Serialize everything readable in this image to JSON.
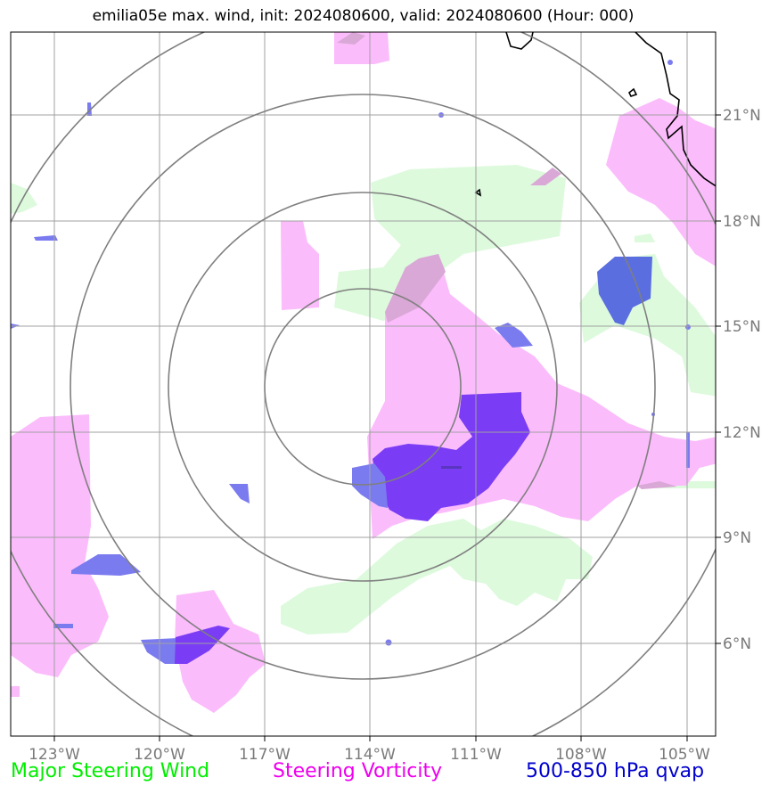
{
  "title": "emilia05e max. wind, init: 2024080600, valid: 2024080600 (Hour: 000)",
  "map": {
    "lon_ticks": [
      "123°W",
      "120°W",
      "117°W",
      "114°W",
      "111°W",
      "108°W",
      "105°W"
    ],
    "lat_ticks": [
      "21°N",
      "18°N",
      "15°N",
      "12°N",
      "9°N",
      "6°N"
    ],
    "range_rings_count": 4
  },
  "legend": [
    {
      "label": "Major Steering Wind",
      "color": "#00ee00"
    },
    {
      "label": "Steering Vorticity",
      "color": "#ee00ee"
    },
    {
      "label": "500-850 hPa qvap",
      "color": "#0000cc"
    }
  ],
  "colors": {
    "wind_fill": "#ddfadd",
    "vorticity_fill": "#fbbcfb",
    "qvap_light": "#7b7bf0",
    "qvap_dark": "#7a3cf5",
    "overlap_fill": "#d9a8d6",
    "grid": "#a0a0a0",
    "rings": "#7f7f7f",
    "coast": "#000000"
  }
}
